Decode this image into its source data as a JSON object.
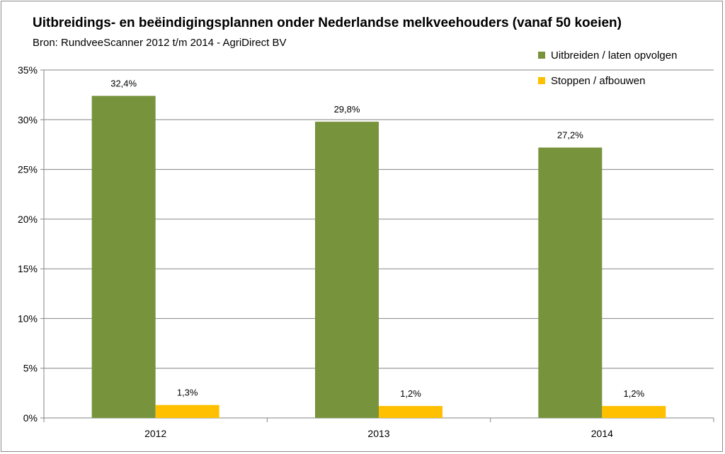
{
  "chart_data": {
    "type": "bar",
    "title": "Uitbreidings- en beëindigingsplannen onder Nederlandse melkveehouders (vanaf 50 koeien)",
    "subtitle": "Bron: RundveeScanner 2012 t/m 2014 - AgriDirect BV",
    "categories": [
      "2012",
      "2013",
      "2014"
    ],
    "series": [
      {
        "name": "Uitbreiden / laten opvolgen",
        "color": "#77933c",
        "values": [
          32.4,
          29.8,
          27.2
        ],
        "labels": [
          "32,4%",
          "29,8%",
          "27,2%"
        ]
      },
      {
        "name": "Stoppen / afbouwen",
        "color": "#ffc000",
        "values": [
          1.3,
          1.2,
          1.2
        ],
        "labels": [
          "1,3%",
          "1,2%",
          "1,2%"
        ]
      }
    ],
    "ylim": [
      0,
      35
    ],
    "yticks": [
      0,
      5,
      10,
      15,
      20,
      25,
      30,
      35
    ],
    "ytick_labels": [
      "0%",
      "5%",
      "10%",
      "15%",
      "20%",
      "25%",
      "30%",
      "35%"
    ],
    "grid": true,
    "legend_position": "top-right"
  }
}
